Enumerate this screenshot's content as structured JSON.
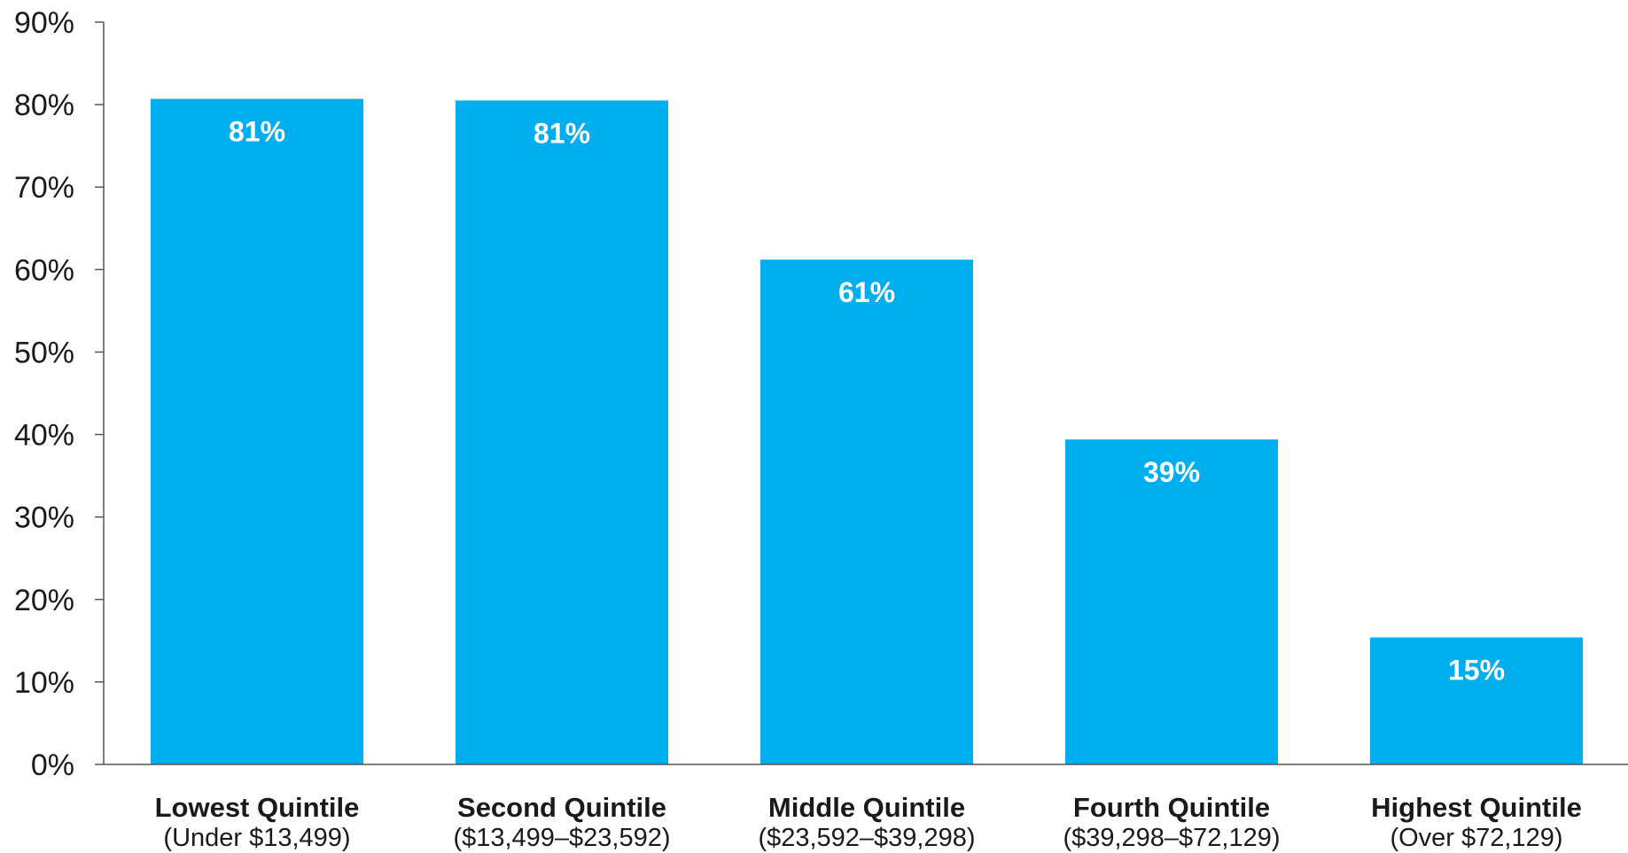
{
  "colors": {
    "bar": "#00AEEF",
    "axis": "#555555",
    "text": "#1a1a1a",
    "bar_label": "#ffffff"
  },
  "chart_data": {
    "type": "bar",
    "categories": [
      "Lowest Quintile",
      "Second Quintile",
      "Middle Quintile",
      "Fourth Quintile",
      "Highest Quintile"
    ],
    "category_sublabels": [
      "(Under $13,499)",
      "($13,499–$23,592)",
      "($23,592–$39,298)",
      "($39,298–$72,129)",
      "(Over $72,129)"
    ],
    "values": [
      80.7,
      80.5,
      61.2,
      39.4,
      15.4
    ],
    "data_labels": [
      "81%",
      "81%",
      "61%",
      "39%",
      "15%"
    ],
    "title": "",
    "xlabel": "",
    "ylabel": "",
    "ylim": [
      0,
      90
    ],
    "yticks": [
      0,
      10,
      20,
      30,
      40,
      50,
      60,
      70,
      80,
      90
    ],
    "ytick_labels": [
      "0%",
      "10%",
      "20%",
      "30%",
      "40%",
      "50%",
      "60%",
      "70%",
      "80%",
      "90%"
    ],
    "grid": false,
    "legend": "none"
  }
}
